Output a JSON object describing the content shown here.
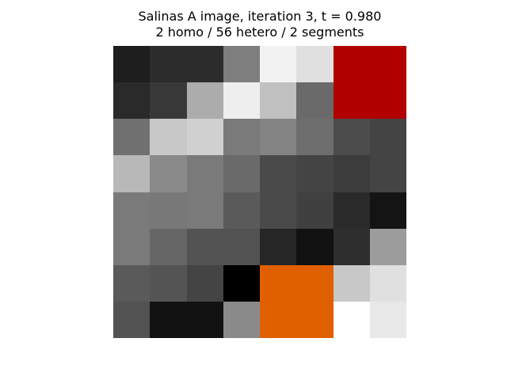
{
  "figure": {
    "title_line1": "Salinas A image, iteration 3, t = 0.980",
    "title_line2": "2 homo / 56 hetero / 2 segments"
  },
  "image_grid": {
    "rows": 8,
    "cols": 8,
    "segment_colors": {
      "segment_1": "#b20000",
      "segment_2": "#e06000"
    },
    "pixels": [
      [
        "#1e1e1e",
        "#2c2c2c",
        "#2c2c2c",
        "#7e7e7e",
        "#f2f2f2",
        "#e0e0e0",
        "#b20000",
        "#b20000"
      ],
      [
        "#2a2a2a",
        "#383838",
        "#acacac",
        "#eeeeee",
        "#c0c0c0",
        "#6a6a6a",
        "#b20000",
        "#b20000"
      ],
      [
        "#707070",
        "#c8c8c8",
        "#d0d0d0",
        "#7a7a7a",
        "#848484",
        "#6e6e6e",
        "#4c4c4c",
        "#444444"
      ],
      [
        "#b8b8b8",
        "#8a8a8a",
        "#7a7a7a",
        "#6a6a6a",
        "#4a4a4a",
        "#444444",
        "#3c3c3c",
        "#444444"
      ],
      [
        "#7a7a7a",
        "#787878",
        "#7a7a7a",
        "#5a5a5a",
        "#4a4a4a",
        "#404040",
        "#2a2a2a",
        "#141414"
      ],
      [
        "#7a7a7a",
        "#666666",
        "#525252",
        "#525252",
        "#262626",
        "#121212",
        "#2e2e2e",
        "#9c9c9c"
      ],
      [
        "#5a5a5a",
        "#545454",
        "#444444",
        "#000000",
        "#e06000",
        "#e06000",
        "#c8c8c8",
        "#e0e0e0"
      ],
      [
        "#525252",
        "#121212",
        "#121212",
        "#8a8a8a",
        "#e06000",
        "#e06000",
        "#ffffff",
        "#e8e8e8"
      ]
    ]
  }
}
